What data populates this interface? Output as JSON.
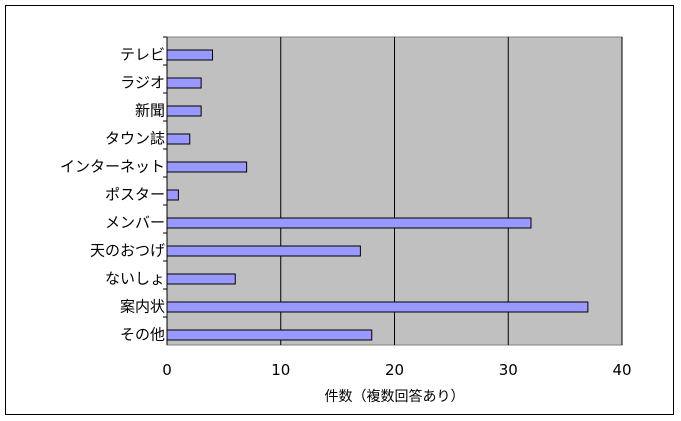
{
  "chart_data": {
    "type": "bar",
    "orientation": "horizontal",
    "categories": [
      "テレビ",
      "ラジオ",
      "新聞",
      "タウン誌",
      "インターネット",
      "ポスター",
      "メンバー",
      "天のおつげ",
      "ないしょ",
      "案内状",
      "その他"
    ],
    "values": [
      4,
      3,
      3,
      2,
      7,
      1,
      32,
      17,
      6,
      37,
      18
    ],
    "xlabel": "件数（複数回答あり）",
    "xlim": [
      0,
      40
    ],
    "xticks": [
      0,
      10,
      20,
      30,
      40
    ],
    "grid": "vertical gridlines at major ticks",
    "legend": "none",
    "colors": {
      "plot_background": "#c0c0c0",
      "bar_fill": "#9999ff",
      "bar_stroke": "#000000",
      "gridline": "#000000"
    }
  }
}
